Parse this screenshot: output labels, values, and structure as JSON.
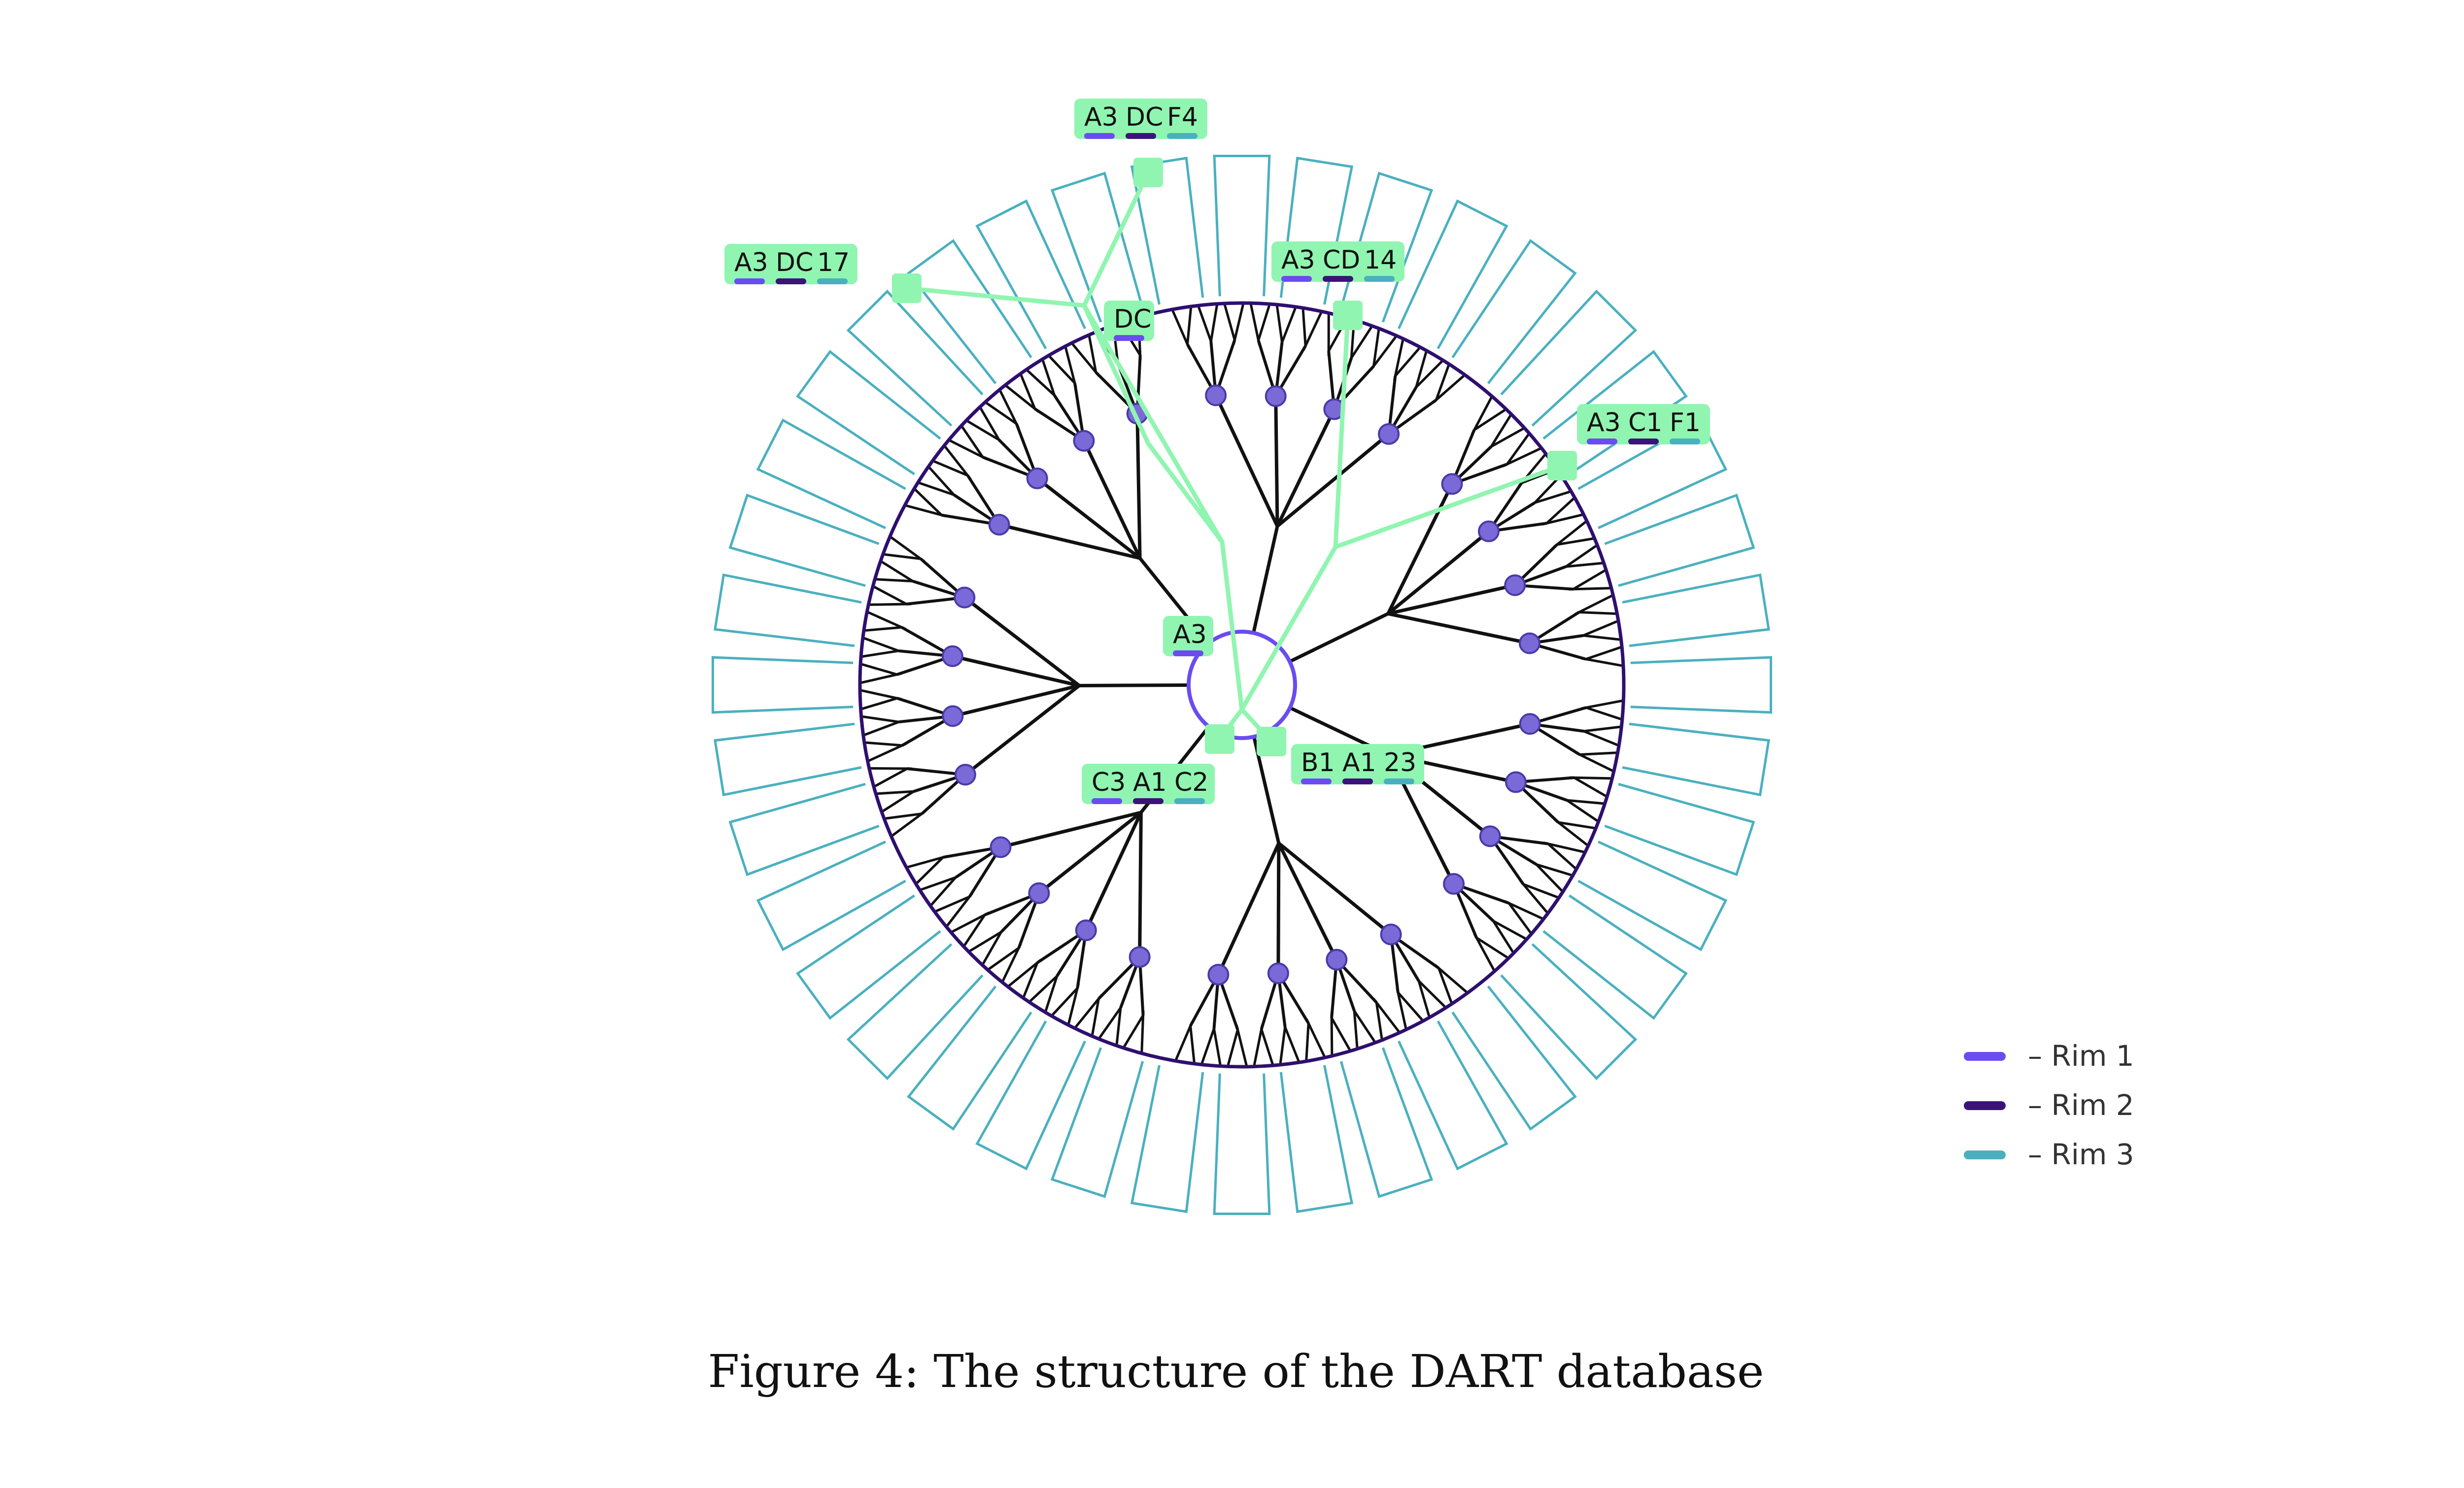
{
  "caption": "Figure 4: The structure of the DART database",
  "colors": {
    "rim1": "#6a4cf0",
    "rim2": "#3a1478",
    "rim3": "#4ab0bf",
    "circle": "#2e0f6e",
    "highlight": "#90f5b0",
    "branch": "#111111",
    "node": "#7a6ad8"
  },
  "legend": [
    {
      "label": "– Rim 1",
      "color": "#6a4cf0"
    },
    {
      "label": "– Rim 2",
      "color": "#3a1478"
    },
    {
      "label": "– Rim 3",
      "color": "#4ab0bf"
    }
  ],
  "labels": [
    {
      "id": "a3-dc-f4",
      "parts": [
        "A3",
        "DC",
        "F4"
      ]
    },
    {
      "id": "a3-dc-17",
      "parts": [
        "A3",
        "DC",
        "17"
      ]
    },
    {
      "id": "a3-cd-14",
      "parts": [
        "A3",
        "CD",
        "14"
      ]
    },
    {
      "id": "dc",
      "parts": [
        "DC"
      ]
    },
    {
      "id": "a3-c1-f1",
      "parts": [
        "A3",
        "C1",
        "F1"
      ]
    },
    {
      "id": "a3",
      "parts": [
        "A3"
      ]
    },
    {
      "id": "b1-a1-23",
      "parts": [
        "B1",
        "A1",
        "23"
      ]
    },
    {
      "id": "c3-a1-c2",
      "parts": [
        "C3",
        "A1",
        "C2"
      ]
    }
  ]
}
